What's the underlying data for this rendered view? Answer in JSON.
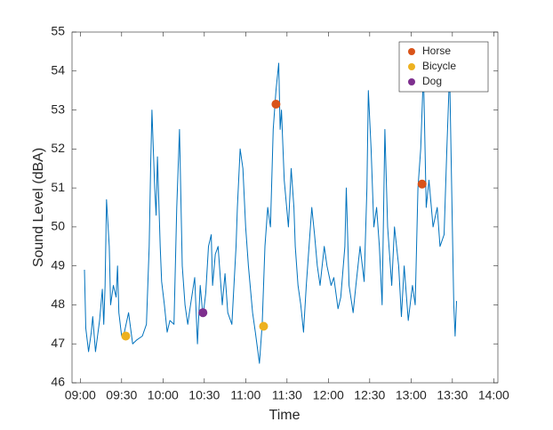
{
  "chart_data": {
    "type": "line",
    "xlabel": "Time",
    "ylabel": "Sound Level (dBA)",
    "xlim": [
      "08:54",
      "14:03"
    ],
    "xticks": [
      "09:00",
      "09:30",
      "10:00",
      "10:30",
      "11:00",
      "11:30",
      "12:00",
      "12:30",
      "13:00",
      "13:30",
      "14:00"
    ],
    "ylim": [
      46,
      55
    ],
    "yticks": [
      46,
      47,
      48,
      49,
      50,
      51,
      52,
      53,
      54,
      55
    ],
    "legend_location": "northeast",
    "line": {
      "color": "#0072BD",
      "x": [
        "09:03",
        "09:04",
        "09:06",
        "09:08",
        "09:09",
        "09:11",
        "09:14",
        "09:16",
        "09:17",
        "09:18",
        "09:19",
        "09:21",
        "09:22",
        "09:24",
        "09:26",
        "09:27",
        "09:28",
        "09:30",
        "09:32",
        "09:35",
        "09:38",
        "09:41",
        "09:45",
        "09:48",
        "09:50",
        "09:51",
        "09:52",
        "09:54",
        "09:55",
        "09:56",
        "09:58",
        "09:59",
        "10:01",
        "10:03",
        "10:05",
        "10:08",
        "10:10",
        "10:12",
        "10:14",
        "10:16",
        "10:18",
        "10:20",
        "10:23",
        "10:25",
        "10:27",
        "10:29",
        "10:31",
        "10:33",
        "10:35",
        "10:36",
        "10:38",
        "10:40",
        "10:43",
        "10:45",
        "10:47",
        "10:50",
        "10:53",
        "10:54",
        "10:56",
        "10:58",
        "11:00",
        "11:02",
        "11:05",
        "11:07",
        "11:10",
        "11:12",
        "11:14",
        "11:16",
        "11:18",
        "11:20",
        "11:22",
        "11:24",
        "11:25",
        "11:26",
        "11:28",
        "11:31",
        "11:33",
        "11:35",
        "11:36",
        "11:38",
        "11:40",
        "11:42",
        "11:44",
        "11:46",
        "11:48",
        "11:50",
        "11:52",
        "11:54",
        "11:57",
        "11:59",
        "12:02",
        "12:04",
        "12:07",
        "12:09",
        "12:12",
        "12:13",
        "12:15",
        "12:18",
        "12:20",
        "12:23",
        "12:26",
        "12:28",
        "12:29",
        "12:31",
        "12:33",
        "12:35",
        "12:37",
        "12:39",
        "12:41",
        "12:43",
        "12:46",
        "12:48",
        "12:51",
        "12:53",
        "12:55",
        "12:58",
        "13:01",
        "13:03",
        "13:05",
        "13:07",
        "13:09",
        "13:11",
        "13:13",
        "13:16",
        "13:19",
        "13:21",
        "13:24",
        "13:26",
        "13:28",
        "13:30",
        "13:31",
        "13:32",
        "13:33"
      ],
      "values": [
        48.9,
        47.4,
        46.8,
        47.3,
        47.7,
        46.8,
        47.6,
        48.4,
        47.5,
        48.5,
        50.7,
        49.5,
        48.0,
        48.5,
        48.2,
        49.0,
        47.8,
        47.2,
        47.3,
        47.8,
        47.0,
        47.1,
        47.2,
        47.5,
        49.5,
        51.5,
        53.0,
        51.0,
        50.3,
        51.8,
        49.5,
        48.6,
        48.0,
        47.3,
        47.6,
        47.5,
        50.5,
        52.5,
        49.0,
        48.0,
        47.5,
        48.0,
        48.7,
        47.0,
        48.5,
        47.7,
        48.3,
        49.5,
        49.8,
        48.5,
        49.3,
        49.5,
        48.0,
        48.8,
        47.8,
        47.5,
        49.5,
        50.5,
        52.0,
        51.5,
        50.0,
        49.0,
        47.8,
        47.3,
        46.5,
        47.5,
        49.5,
        50.5,
        50.0,
        52.5,
        53.5,
        54.2,
        52.5,
        53.0,
        51.2,
        50.0,
        51.5,
        50.5,
        49.5,
        48.5,
        48.0,
        47.3,
        48.5,
        49.5,
        50.5,
        49.8,
        49.0,
        48.5,
        49.5,
        49.0,
        48.5,
        48.7,
        47.9,
        48.2,
        49.5,
        51.0,
        48.5,
        47.8,
        48.5,
        49.5,
        48.6,
        51.0,
        53.5,
        52.0,
        50.0,
        50.5,
        49.5,
        48.0,
        52.5,
        50.0,
        48.5,
        50.0,
        49.0,
        47.7,
        49.0,
        47.6,
        48.5,
        48.0,
        51.0,
        52.0,
        54.0,
        50.5,
        51.2,
        50.0,
        50.5,
        49.5,
        49.8,
        52.0,
        54.0,
        50.0,
        48.0,
        47.2,
        48.1
      ]
    },
    "series": [
      {
        "name": "Horse",
        "color": "#D95319",
        "x": [
          "11:22",
          "13:08"
        ],
        "values": [
          53.15,
          51.1
        ]
      },
      {
        "name": "Bicycle",
        "color": "#EDB120",
        "x": [
          "09:33",
          "11:13"
        ],
        "values": [
          47.2,
          47.45
        ]
      },
      {
        "name": "Dog",
        "color": "#7E2F8E",
        "x": [
          "10:29"
        ],
        "values": [
          47.8
        ]
      }
    ]
  }
}
